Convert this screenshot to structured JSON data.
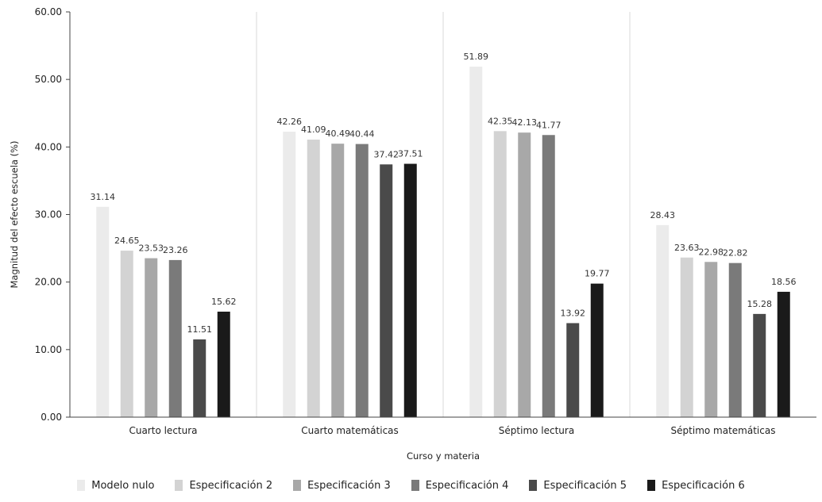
{
  "chart_data": {
    "type": "bar",
    "categories": [
      "Cuarto lectura",
      "Cuarto matemáticas",
      "Séptimo lectura",
      "Séptimo matemáticas"
    ],
    "series": [
      {
        "name": "Modelo nulo",
        "color": "#ebebeb",
        "values": [
          31.14,
          42.26,
          51.89,
          28.43
        ]
      },
      {
        "name": "Especificación 2",
        "color": "#d3d3d3",
        "values": [
          24.65,
          41.09,
          42.35,
          23.63
        ]
      },
      {
        "name": "Especificación 3",
        "color": "#a8a8a8",
        "values": [
          23.53,
          40.49,
          42.13,
          22.98
        ]
      },
      {
        "name": "Especificación 4",
        "color": "#7a7a7a",
        "values": [
          23.26,
          40.44,
          41.77,
          22.82
        ]
      },
      {
        "name": "Especificación 5",
        "color": "#4a4a4a",
        "values": [
          11.51,
          37.42,
          13.92,
          15.28
        ]
      },
      {
        "name": "Especificación 6",
        "color": "#1a1a1a",
        "values": [
          15.62,
          37.51,
          19.77,
          18.56
        ]
      }
    ],
    "value_labels": [
      [
        "31.14",
        "42.26",
        "51.89",
        "28.43"
      ],
      [
        "24.65",
        "41.09",
        "42.35",
        "23.63"
      ],
      [
        "23.53",
        "40.49",
        "42.13",
        "22.98"
      ],
      [
        "23.26",
        "40.44",
        "41.77",
        "22.82"
      ],
      [
        "11.51",
        "37.42",
        "13.92",
        "15.28"
      ],
      [
        "15.62",
        "37.51",
        "19.77",
        "18.56"
      ]
    ],
    "yticks": [
      "0.00",
      "10.00",
      "20.00",
      "30.00",
      "40.00",
      "50.00",
      "60.00"
    ],
    "ylim": [
      0,
      60
    ],
    "xlabel": "Curso y materia",
    "ylabel": "Magnitud del efecto escuela (%)",
    "legend_position": "bottom",
    "grid": false
  }
}
